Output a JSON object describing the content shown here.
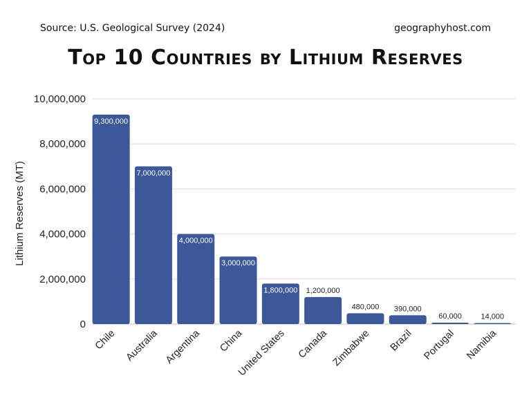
{
  "header": {
    "source": "Source: U.S. Geological Survey (2024)",
    "site": "geographyhost.com"
  },
  "chart_data": {
    "type": "bar",
    "title": "Top 10 Countries by Lithium Reserves",
    "ylabel": "Lithium Reserves (MT)",
    "xlabel": "",
    "ylim": [
      0,
      10000000
    ],
    "yticks": [
      0,
      2000000,
      4000000,
      6000000,
      8000000,
      10000000
    ],
    "ytick_labels": [
      "0",
      "2,000,000",
      "4,000,000",
      "6,000,000",
      "8,000,000",
      "10,000,000"
    ],
    "grid": true,
    "bar_color": "#3b5998",
    "categories": [
      "Chile",
      "Australia",
      "Argentina",
      "China",
      "United States",
      "Canada",
      "Zimbabwe",
      "Brazil",
      "Portugal",
      "Namibia"
    ],
    "values": [
      9300000,
      7000000,
      4000000,
      3000000,
      1800000,
      1200000,
      480000,
      390000,
      60000,
      14000
    ],
    "value_labels": [
      "9,300,000",
      "7,000,000",
      "4,000,000",
      "3,000,000",
      "1,800,000",
      "1,200,000",
      "480,000",
      "390,000",
      "60,000",
      "14,000"
    ]
  }
}
